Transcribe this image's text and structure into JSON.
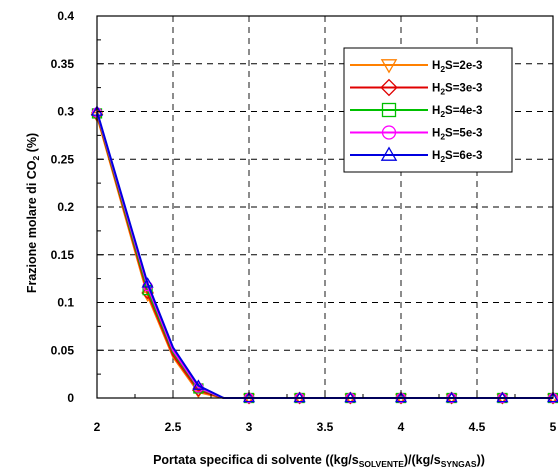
{
  "chart_data": {
    "type": "line",
    "title": "",
    "xlabel": {
      "prefix": "Portata specifica di solvente ((kg/s",
      "sub1": "SOLVENTE",
      "middle": ")/(kg/s",
      "sub2": "SYNGAS",
      "suffix": "))"
    },
    "ylabel": {
      "prefix": "Frazione molare di CO",
      "sub": "2",
      "suffix": " (%)"
    },
    "xlim": [
      2,
      5
    ],
    "ylim": [
      0,
      0.4
    ],
    "xticks": [
      "2",
      "2.5",
      "3",
      "3.5",
      "4",
      "4.5",
      "5"
    ],
    "yticks": [
      "0",
      "0.05",
      "0.1",
      "0.15",
      "0.2",
      "0.25",
      "0.3",
      "0.35",
      "0.4"
    ],
    "grid": true,
    "legend_position": "top-right",
    "x": [
      2,
      2.333,
      2.5,
      2.667,
      2.833,
      3,
      3.333,
      3.667,
      4,
      4.333,
      4.667,
      5
    ],
    "marker_x": [
      2,
      2.333,
      2.667,
      3,
      3.333,
      3.667,
      4,
      4.333,
      4.667,
      5
    ],
    "series": [
      {
        "name": "H2S=2e-3",
        "name_parts": [
          "H",
          "2",
          "S=2e-3"
        ],
        "color": "#ff8000",
        "marker": "triangle-down",
        "values": [
          0.295,
          0.107,
          0.043,
          0.006,
          0.0,
          0,
          0,
          0,
          0,
          0,
          0,
          0
        ]
      },
      {
        "name": "H2S=3e-3",
        "name_parts": [
          "H",
          "2",
          "S=3e-3"
        ],
        "color": "#e00000",
        "marker": "diamond",
        "values": [
          0.297,
          0.11,
          0.045,
          0.008,
          0.0,
          0,
          0,
          0,
          0,
          0,
          0,
          0
        ]
      },
      {
        "name": "H2S=4e-3",
        "name_parts": [
          "H",
          "2",
          "S=4e-3"
        ],
        "color": "#00c000",
        "marker": "square",
        "values": [
          0.298,
          0.113,
          0.048,
          0.01,
          0.0,
          0,
          0,
          0,
          0,
          0,
          0,
          0
        ]
      },
      {
        "name": "H2S=5e-3",
        "name_parts": [
          "H",
          "2",
          "S=5e-3"
        ],
        "color": "#ff00ff",
        "marker": "circle",
        "values": [
          0.299,
          0.117,
          0.05,
          0.011,
          0.0,
          0,
          0,
          0,
          0,
          0,
          0,
          0
        ]
      },
      {
        "name": "H2S=6e-3",
        "name_parts": [
          "H",
          "2",
          "S=6e-3"
        ],
        "color": "#0000e0",
        "marker": "triangle-up",
        "values": [
          0.3,
          0.12,
          0.053,
          0.013,
          0.0,
          0,
          0,
          0,
          0,
          0,
          0,
          0
        ]
      }
    ]
  }
}
